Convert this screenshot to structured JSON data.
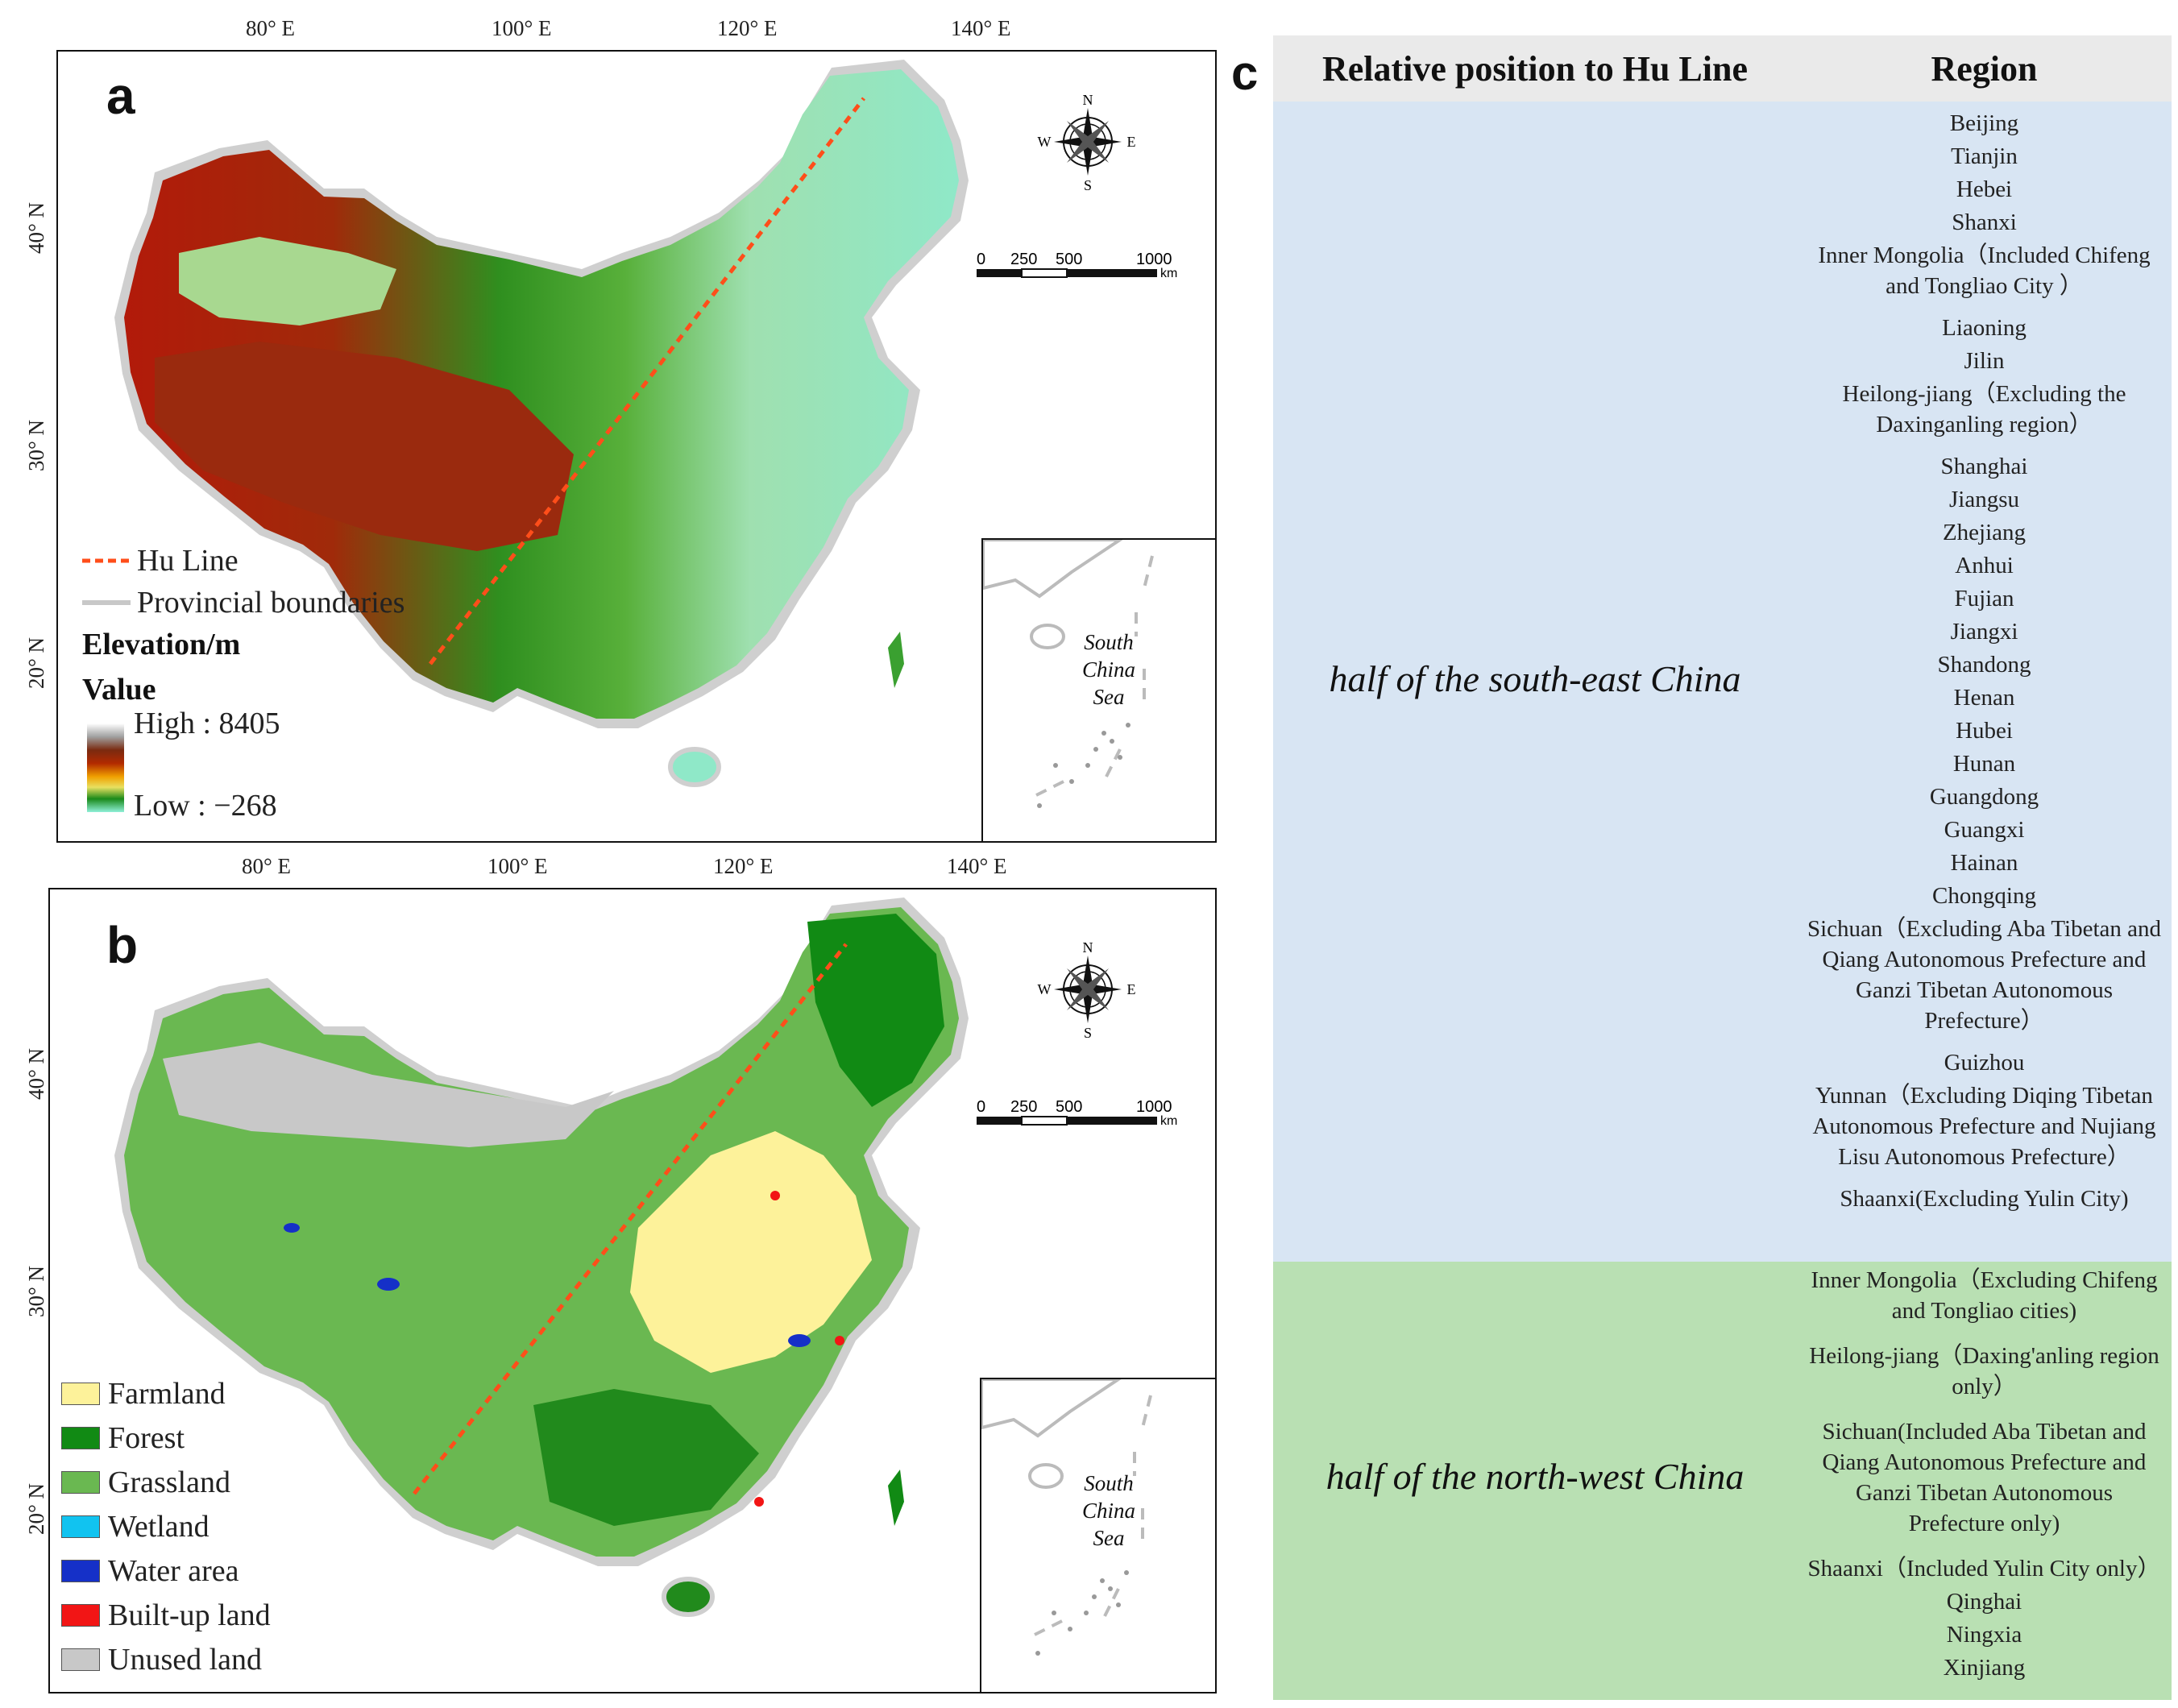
{
  "panel_a": {
    "letter": "a",
    "lon_labels": [
      "80° E",
      "100° E",
      "120° E",
      "140° E"
    ],
    "lat_labels": [
      "40° N",
      "30° N",
      "20° N"
    ],
    "legend": {
      "hu_line": "Hu Line",
      "provincial": "Provincial boundaries",
      "elevation_title": "Elevation/m",
      "value_title": "Value",
      "high": "High : 8405",
      "low": "Low : −268"
    },
    "colors": {
      "hu_line": "#ff4e1a",
      "provincial": "#c8c8c8"
    }
  },
  "panel_b": {
    "letter": "b",
    "lon_labels": [
      "80° E",
      "100° E",
      "120° E",
      "140° E"
    ],
    "lat_labels": [
      "40° N",
      "30° N",
      "20° N"
    ],
    "legend": [
      {
        "label": "Farmland",
        "color": "#fdf29a"
      },
      {
        "label": "Forest",
        "color": "#118a14"
      },
      {
        "label": "Grassland",
        "color": "#6ab851"
      },
      {
        "label": "Wetland",
        "color": "#11c3f0"
      },
      {
        "label": "Water area",
        "color": "#1530c8"
      },
      {
        "label": "Built-up land",
        "color": "#f21515"
      },
      {
        "label": "Unused land",
        "color": "#c8c8c8"
      }
    ]
  },
  "compass": {
    "n": "N",
    "s": "S",
    "e": "E",
    "w": "W"
  },
  "scalebar": {
    "ticks": [
      "0",
      "250",
      "500",
      "1000"
    ],
    "unit": "km"
  },
  "inset": {
    "line1": "South",
    "line2": "China",
    "line3": "Sea"
  },
  "panel_c": {
    "letter": "c",
    "header": {
      "col1": "Relative position to Hu Line",
      "col2": "Region"
    },
    "southeast": {
      "label": "half of the south-east China",
      "regions": [
        [
          "Beijing"
        ],
        [
          "Tianjin"
        ],
        [
          "Hebei"
        ],
        [
          "Shanxi"
        ],
        [
          "Inner Mongolia（Included Chifeng",
          "and Tongliao City ）"
        ],
        [
          "Liaoning"
        ],
        [
          "Jilin"
        ],
        [
          "Heilong-jiang（Excluding the",
          "Daxinganling region）"
        ],
        [
          "Shanghai"
        ],
        [
          "Jiangsu"
        ],
        [
          "Zhejiang"
        ],
        [
          "Anhui"
        ],
        [
          "Fujian"
        ],
        [
          "Jiangxi"
        ],
        [
          "Shandong"
        ],
        [
          "Henan"
        ],
        [
          "Hubei"
        ],
        [
          "Hunan"
        ],
        [
          "Guangdong"
        ],
        [
          "Guangxi"
        ],
        [
          "Hainan"
        ],
        [
          "Chongqing"
        ],
        [
          "Sichuan（Excluding Aba Tibetan and",
          "Qiang Autonomous Prefecture and",
          "Ganzi Tibetan Autonomous",
          "Prefecture）"
        ],
        [
          "Guizhou"
        ],
        [
          "Yunnan（Excluding Diqing Tibetan",
          "Autonomous Prefecture and Nujiang",
          "Lisu Autonomous Prefecture）"
        ],
        [
          "Shaanxi(Excluding Yulin City)"
        ]
      ],
      "color": "#d8e5f3"
    },
    "northwest": {
      "label": "half of the north-west China",
      "regions": [
        [
          "Inner Mongolia（Excluding Chifeng",
          "and Tongliao cities)"
        ],
        [
          "Heilong-jiang（Daxing'anling region",
          "only）"
        ],
        [
          "Sichuan(Included Aba Tibetan and",
          "Qiang Autonomous Prefecture and",
          "Ganzi Tibetan Autonomous",
          "Prefecture only)"
        ],
        [
          "Shaanxi（Included Yulin City only）"
        ],
        [
          "Qinghai"
        ],
        [
          "Ningxia"
        ],
        [
          "Xinjiang"
        ]
      ],
      "color": "#b9e0b3"
    }
  }
}
